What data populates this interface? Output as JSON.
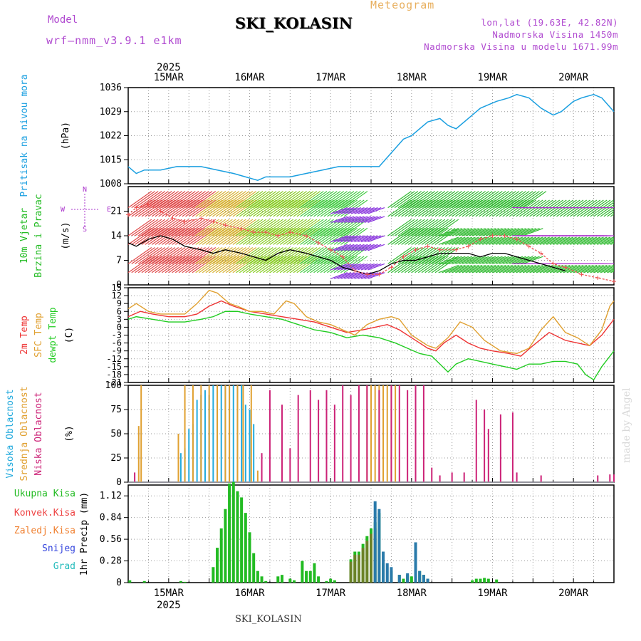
{
  "header": {
    "model_label": "Model",
    "model_name": "wrf—nmm_v3.9.1  e1km",
    "meteogram_label": "Meteogram",
    "station": "SKI_KOLASIN",
    "lonlat": "lon,lat (19.63E, 42.82N)",
    "elevation": "Nadmorska Visina 1450m",
    "model_elevation": "Nadmorska Visina u modelu 1671.99m"
  },
  "footer": {
    "station": "SKI_KOLASIN",
    "credit": "made by Angel"
  },
  "colors": {
    "pressure": "#1a9fe0",
    "wind_green": "#22bb22",
    "wind_purple": "#aa33cc",
    "temp_2m": "#ee3333",
    "temp_sfc": "#e0a030",
    "dewpt": "#22cc22",
    "cloud_high": "#22aadd",
    "cloud_mid": "#e0a030",
    "cloud_low": "#cc2277",
    "precip_total": "#22bb22",
    "precip_conv": "#ee4444",
    "precip_frozen": "#f08030",
    "precip_snow": "#3344dd",
    "precip_graupel": "#22bbbb"
  },
  "chart_data": [
    {
      "type": "line",
      "panel": "pressure",
      "ylabel_lines": [
        "Pritisak na nivou mora",
        "(hPa)"
      ],
      "ylim": [
        1008,
        1036
      ],
      "yticks": [
        1008,
        1015,
        1022,
        1029,
        1036
      ],
      "grid": true,
      "x_day_labels": [
        "15MAR",
        "16MAR",
        "17MAR",
        "18MAR",
        "19MAR",
        "20MAR"
      ],
      "x_year": "2025",
      "x_range_days": [
        14.5,
        20.5
      ],
      "series": [
        {
          "x": [
            14.5,
            14.6,
            14.7,
            14.9,
            15.1,
            15.2,
            15.4,
            15.6,
            15.8,
            15.95,
            16.1,
            16.2,
            16.35,
            16.5,
            16.7,
            16.9,
            17.1,
            17.3,
            17.5,
            17.6,
            17.75,
            17.9,
            18.0,
            18.2,
            18.35,
            18.45,
            18.55,
            18.7,
            18.85,
            18.95,
            19.05,
            19.2,
            19.3,
            19.45,
            19.6,
            19.75,
            19.85,
            20.0,
            20.1,
            20.25,
            20.35,
            20.5
          ],
          "y": [
            1013,
            1011,
            1012,
            1012,
            1013,
            1013,
            1013,
            1012,
            1011,
            1010,
            1009,
            1010,
            1010,
            1010,
            1011,
            1012,
            1013,
            1013,
            1013,
            1013,
            1017,
            1021,
            1022,
            1026,
            1027,
            1025,
            1024,
            1027,
            1030,
            1031,
            1032,
            1033,
            1034,
            1033,
            1030,
            1028,
            1029,
            1032,
            1033,
            1034,
            1033,
            1029
          ]
        }
      ]
    },
    {
      "type": "line",
      "panel": "wind",
      "ylabel_lines": [
        "10m Vjetar",
        "Brzina i Pravac",
        "(m/s)"
      ],
      "ylim": [
        0,
        28
      ],
      "yticks": [
        0,
        7,
        14,
        21
      ],
      "grid": true,
      "series": [
        {
          "x": [
            14.5,
            14.6,
            14.75,
            14.9,
            15.05,
            15.2,
            15.4,
            15.55,
            15.7,
            15.9,
            16.05,
            16.2,
            16.35,
            16.5,
            16.7,
            16.85,
            17.0,
            17.15,
            17.3,
            17.45,
            17.6,
            17.75,
            17.9,
            18.05,
            18.2,
            18.35,
            18.55,
            18.7,
            18.85,
            19.0,
            19.15,
            19.3,
            19.45,
            19.6,
            19.75,
            19.9
          ],
          "y": [
            12,
            11,
            13,
            14,
            13,
            11,
            10,
            9,
            10,
            9,
            8,
            7,
            9,
            10,
            9,
            8,
            7,
            5,
            4,
            3,
            4,
            6,
            7,
            7,
            8,
            9,
            9,
            9,
            8,
            9,
            9,
            8,
            7,
            6,
            5,
            4
          ]
        },
        {
          "x": [
            14.5,
            14.6,
            14.75,
            14.9,
            15.05,
            15.2,
            15.4,
            15.55,
            15.7,
            15.9,
            16.05,
            16.2,
            16.35,
            16.5,
            16.7,
            16.85,
            17.0,
            17.15,
            17.3,
            17.45,
            17.6,
            17.75,
            17.9,
            18.05,
            18.2,
            18.35,
            18.55,
            18.7,
            18.85,
            19.0,
            19.15,
            19.3,
            19.45,
            19.6,
            19.75,
            19.9,
            20.1,
            20.3,
            20.5
          ],
          "y": [
            20,
            22,
            23,
            21,
            19,
            18,
            19,
            18,
            17,
            16,
            15,
            15,
            14,
            15,
            14,
            12,
            10,
            8,
            4,
            3,
            3,
            5,
            8,
            10,
            11,
            10,
            10,
            11,
            13,
            14,
            14,
            13,
            11,
            9,
            6,
            5,
            3,
            2,
            1
          ]
        }
      ]
    },
    {
      "type": "line",
      "panel": "temperature",
      "ylabel_lines": [
        "2m Temp",
        "SFC Temp",
        "dewpt Temp",
        "(C)"
      ],
      "ylim": [
        -21,
        15
      ],
      "yticks": [
        15,
        12,
        9,
        6,
        3,
        0,
        -3,
        -6,
        -9,
        -12,
        -15,
        -18,
        -21
      ],
      "grid": true,
      "series": [
        {
          "name": "2m Temp",
          "x": [
            14.5,
            14.65,
            14.8,
            15.0,
            15.2,
            15.35,
            15.5,
            15.65,
            15.8,
            16.0,
            16.2,
            16.4,
            16.6,
            16.8,
            17.0,
            17.2,
            17.4,
            17.55,
            17.7,
            17.85,
            18.0,
            18.1,
            18.2,
            18.3,
            18.4,
            18.55,
            18.7,
            18.85,
            19.0,
            19.2,
            19.35,
            19.5,
            19.7,
            19.9,
            20.05,
            20.2,
            20.35,
            20.5
          ],
          "y": [
            4,
            6,
            5,
            4,
            4,
            5,
            8,
            10,
            8,
            6,
            5,
            4,
            3,
            2,
            0,
            -2,
            -1,
            0,
            1,
            -1,
            -4,
            -6,
            -8,
            -9,
            -6,
            -3,
            -6,
            -8,
            -9,
            -10,
            -11,
            -7,
            -2,
            -5,
            -6,
            -7,
            -3,
            3
          ]
        },
        {
          "name": "SFC Temp",
          "x": [
            14.5,
            14.6,
            14.75,
            14.9,
            15.05,
            15.2,
            15.35,
            15.5,
            15.6,
            15.75,
            15.85,
            16.0,
            16.15,
            16.3,
            16.45,
            16.55,
            16.7,
            16.85,
            17.0,
            17.15,
            17.3,
            17.45,
            17.6,
            17.75,
            17.85,
            18.0,
            18.1,
            18.2,
            18.3,
            18.45,
            18.6,
            18.75,
            18.9,
            19.1,
            19.3,
            19.45,
            19.6,
            19.75,
            19.9,
            20.05,
            20.2,
            20.35,
            20.45,
            20.5
          ],
          "y": [
            7,
            9,
            6,
            5,
            5,
            5,
            9,
            14,
            13,
            9,
            8,
            6,
            6,
            5,
            10,
            9,
            4,
            2,
            1,
            -1,
            -3,
            1,
            3,
            4,
            3,
            -3,
            -5,
            -7,
            -8,
            -4,
            2,
            0,
            -5,
            -9,
            -10,
            -8,
            -1,
            4,
            -2,
            -4,
            -7,
            -1,
            8,
            10
          ]
        },
        {
          "name": "dewpt Temp",
          "x": [
            14.5,
            14.6,
            14.8,
            15.0,
            15.2,
            15.4,
            15.55,
            15.7,
            15.85,
            16.0,
            16.2,
            16.4,
            16.6,
            16.8,
            17.0,
            17.2,
            17.4,
            17.6,
            17.8,
            17.95,
            18.1,
            18.25,
            18.35,
            18.45,
            18.55,
            18.7,
            18.85,
            19.0,
            19.15,
            19.3,
            19.45,
            19.6,
            19.75,
            19.9,
            20.05,
            20.15,
            20.25,
            20.35,
            20.5
          ],
          "y": [
            3,
            4,
            3,
            2,
            2,
            3,
            4,
            6,
            6,
            5,
            4,
            3,
            1,
            -1,
            -2,
            -4,
            -3,
            -4,
            -6,
            -8,
            -10,
            -11,
            -14,
            -17,
            -14,
            -12,
            -13,
            -14,
            -15,
            -16,
            -14,
            -14,
            -13,
            -13,
            -14,
            -18,
            -20,
            -15,
            -9
          ]
        }
      ]
    },
    {
      "type": "bar",
      "panel": "clouds",
      "ylabel_lines": [
        "Visoka Oblacnost",
        "Srednja Oblacnost",
        "Niska Oblacnost",
        "(%)"
      ],
      "ylim": [
        0,
        100
      ],
      "yticks": [
        0,
        25,
        50,
        75,
        100
      ],
      "grid": true,
      "series": [
        {
          "name": "Visoka Oblacnost",
          "x": [
            15.15,
            15.2,
            15.25,
            15.3,
            15.35,
            15.4,
            15.45,
            15.5,
            15.55,
            15.6,
            15.65,
            15.7,
            15.75,
            15.8,
            15.85,
            15.9,
            15.95,
            16.0,
            16.05
          ],
          "values": [
            30,
            35,
            55,
            60,
            85,
            90,
            95,
            90,
            100,
            95,
            100,
            100,
            100,
            100,
            100,
            100,
            80,
            75,
            60
          ]
        },
        {
          "name": "Srednja Oblacnost",
          "x": [
            14.63,
            14.66,
            15.12,
            15.2,
            15.3,
            15.4,
            15.5,
            15.6,
            15.7,
            15.75,
            15.85,
            15.92,
            16.02,
            16.1,
            17.45,
            17.5,
            17.55,
            17.6,
            17.65,
            17.7,
            17.75,
            17.8
          ],
          "values": [
            58,
            100,
            50,
            100,
            100,
            100,
            100,
            100,
            100,
            100,
            100,
            100,
            100,
            12,
            100,
            100,
            100,
            100,
            100,
            100,
            100,
            100
          ]
        },
        {
          "name": "Niska Oblacnost",
          "x": [
            14.58,
            16.15,
            16.25,
            16.4,
            16.5,
            16.6,
            16.75,
            16.85,
            16.95,
            17.05,
            17.15,
            17.25,
            17.35,
            17.45,
            17.6,
            17.75,
            17.85,
            17.95,
            18.05,
            18.15,
            18.25,
            18.35,
            18.5,
            18.65,
            18.8,
            18.9,
            18.95,
            19.1,
            19.25,
            19.3,
            19.6,
            20.3,
            20.45,
            20.5
          ],
          "values": [
            10,
            30,
            95,
            80,
            35,
            90,
            95,
            85,
            95,
            80,
            100,
            90,
            100,
            100,
            95,
            100,
            100,
            95,
            100,
            100,
            15,
            7,
            10,
            10,
            85,
            75,
            55,
            70,
            72,
            10,
            7,
            7,
            8,
            8
          ]
        }
      ]
    },
    {
      "type": "bar",
      "panel": "precipitation",
      "ylabel_lines": [
        "1hr Precip (mm)"
      ],
      "legend_labels": [
        "Ukupna Kisa",
        "Konvek.Kisa",
        "Zaledj.Kisa",
        "Snijeg",
        "Grad"
      ],
      "ylim": [
        0,
        1.26
      ],
      "yticks": [
        0,
        0.28,
        0.56,
        0.84,
        1.12
      ],
      "grid": true,
      "series": [
        {
          "name": "Ukupna Kisa",
          "x": [
            14.52,
            14.7,
            15.15,
            15.2,
            15.55,
            15.6,
            15.65,
            15.7,
            15.75,
            15.8,
            15.85,
            15.9,
            15.95,
            16.0,
            16.05,
            16.1,
            16.15,
            16.2,
            16.35,
            16.4,
            16.5,
            16.55,
            16.65,
            16.7,
            16.75,
            16.8,
            16.85,
            16.95,
            17.0,
            17.05,
            17.25,
            17.3,
            17.35,
            17.4,
            17.45,
            17.5,
            17.55,
            17.6,
            17.65,
            17.75,
            17.85,
            17.9,
            17.95,
            18.0,
            18.05,
            18.1,
            18.15,
            18.2,
            18.75,
            18.8,
            18.85,
            18.9,
            18.95,
            19.05
          ],
          "values": [
            0.03,
            0.02,
            0.02,
            0.01,
            0.2,
            0.45,
            0.7,
            0.95,
            1.28,
            1.3,
            1.18,
            1.1,
            0.9,
            0.65,
            0.38,
            0.15,
            0.08,
            0.02,
            0.08,
            0.1,
            0.05,
            0.03,
            0.28,
            0.15,
            0.15,
            0.25,
            0.08,
            0.02,
            0.05,
            0.03,
            0.3,
            0.4,
            0.4,
            0.5,
            0.6,
            0.7,
            0.78,
            0.9,
            0.25,
            0.15,
            0.1,
            0.05,
            0.1,
            0.08,
            0.05,
            0.15,
            0.1,
            0.05,
            0.03,
            0.05,
            0.05,
            0.06,
            0.05,
            0.04
          ]
        },
        {
          "name": "Snijeg",
          "x": [
            17.55,
            17.6,
            17.65,
            17.7,
            17.75,
            17.85,
            17.95,
            18.05,
            18.1,
            18.15,
            18.2
          ],
          "values": [
            1.05,
            0.95,
            0.4,
            0.25,
            0.2,
            0.1,
            0.12,
            0.52,
            0.15,
            0.1,
            0.05
          ]
        }
      ]
    }
  ]
}
